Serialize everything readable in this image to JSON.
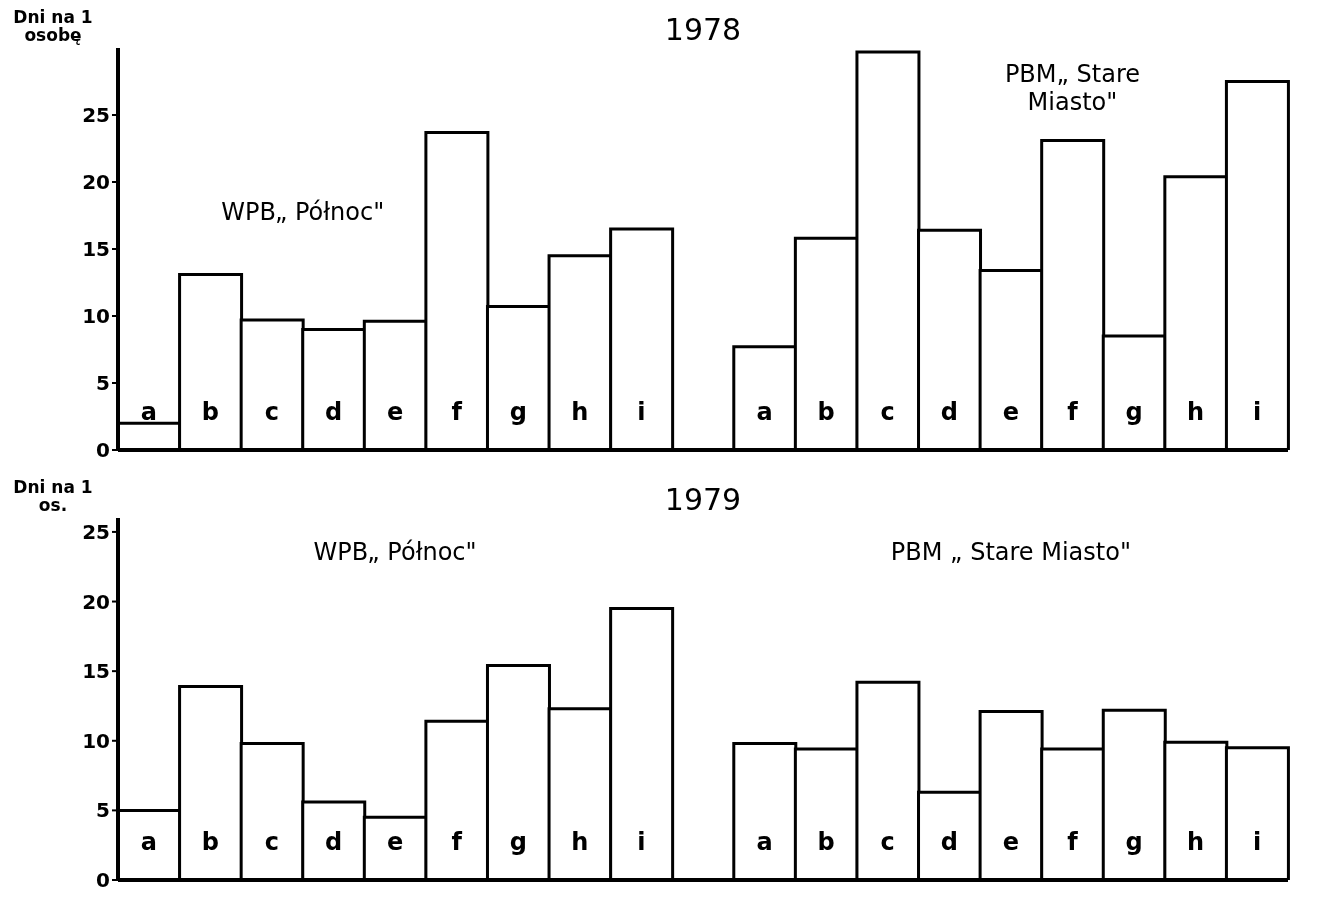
{
  "chart_data": [
    {
      "type": "bar",
      "title": "1978",
      "ylabel": "Dni na 1 osobę",
      "annotations": [
        "WPB„ Północ\"",
        "PBM„ Stare Miasto\""
      ],
      "categories": [
        "a",
        "b",
        "c",
        "d",
        "e",
        "f",
        "g",
        "h",
        "i",
        null,
        "a",
        "b",
        "c",
        "d",
        "e",
        "f",
        "g",
        "h",
        "i"
      ],
      "values": [
        2,
        13.1,
        9.7,
        9,
        9.6,
        23.7,
        10.7,
        14.5,
        16.5,
        null,
        7.7,
        15.8,
        29.7,
        16.4,
        13.4,
        23.1,
        8.5,
        20.4,
        27.5
      ],
      "color": "#ffffff",
      "ylim": [
        0,
        30
      ],
      "yticks": [
        0,
        5,
        10,
        15,
        20,
        25
      ],
      "grid": false,
      "legend": false
    },
    {
      "type": "bar",
      "title": "1979",
      "ylabel": "Dni na 1 os.",
      "annotations": [
        "WPB„ Północ\"",
        "PBM „ Stare Miasto\""
      ],
      "categories": [
        "a",
        "b",
        "c",
        "d",
        "e",
        "f",
        "g",
        "h",
        "i",
        null,
        "a",
        "b",
        "c",
        "d",
        "e",
        "f",
        "g",
        "h",
        "i"
      ],
      "values": [
        5,
        13.9,
        9.8,
        5.6,
        4.5,
        11.4,
        15.4,
        12.3,
        19.5,
        null,
        9.8,
        9.4,
        14.2,
        6.3,
        12.1,
        9.4,
        12.2,
        9.9,
        9.5
      ],
      "color": "#ffffff",
      "ylim": [
        0,
        26
      ],
      "yticks": [
        0,
        5,
        10,
        15,
        20,
        25
      ],
      "grid": false,
      "legend": false
    }
  ]
}
